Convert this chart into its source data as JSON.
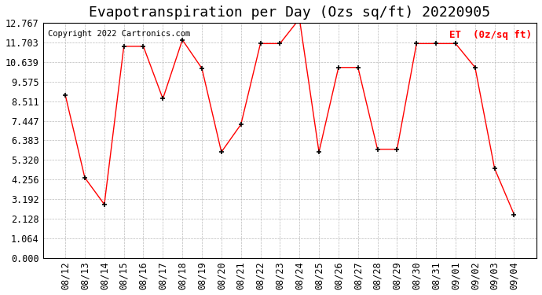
{
  "title": "Evapotranspiration per Day (Ozs sq/ft) 20220905",
  "copyright_text": "Copyright 2022 Cartronics.com",
  "legend_label": "ET  (0z/sq ft)",
  "dates": [
    "08/12",
    "08/13",
    "08/14",
    "08/15",
    "08/16",
    "08/17",
    "08/18",
    "08/19",
    "08/20",
    "08/21",
    "08/22",
    "08/23",
    "08/24",
    "08/25",
    "08/26",
    "08/27",
    "08/28",
    "08/29",
    "08/30",
    "08/31",
    "09/01",
    "09/02",
    "09/03",
    "09/04"
  ],
  "values": [
    8.85,
    4.35,
    2.9,
    11.5,
    11.5,
    8.65,
    11.85,
    10.3,
    5.75,
    7.25,
    11.65,
    11.65,
    13.0,
    5.75,
    10.35,
    10.35,
    5.9,
    5.9,
    11.65,
    11.65,
    11.65,
    10.35,
    4.85,
    2.35
  ],
  "ylim": [
    0,
    12.767
  ],
  "yticks": [
    0.0,
    1.064,
    2.128,
    3.192,
    4.256,
    5.32,
    6.383,
    7.447,
    8.511,
    9.575,
    10.639,
    11.703,
    12.767
  ],
  "line_color": "red",
  "marker_color": "black",
  "marker": "+",
  "background_color": "white",
  "grid_color": "#aaaaaa",
  "title_fontsize": 13,
  "tick_fontsize": 8.5,
  "legend_color": "red",
  "copyright_color": "black",
  "copyright_fontsize": 7.5
}
